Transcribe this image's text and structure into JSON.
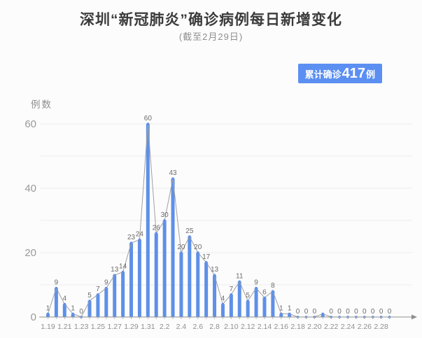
{
  "title": "深圳“新冠肺炎”确诊病例每日新增变化",
  "subtitle": "(截至2月29日)",
  "badge": {
    "prefix": "累计确诊",
    "number": "417",
    "suffix": "例"
  },
  "colors": {
    "bar": "#5e90e8",
    "marker": "#5e90e8",
    "line": "#a0a0a0",
    "badge_bg": "#5b8ff2",
    "grid": "#ededed",
    "axis": "#8f8f8f",
    "point_label": "#6b6b6b",
    "tick_text": "#8f8f8f",
    "y_tick_text": "#9a9a9a",
    "title_text": "#3b3b3b",
    "subtitle_text": "#8f8f8f"
  },
  "chart_data": {
    "type": "bar",
    "line_overlay": true,
    "title": "深圳“新冠肺炎”确诊病例每日新增变化",
    "subtitle": "(截至2月29日)",
    "ylabel": "例数",
    "xlabel": "",
    "grid": true,
    "grid_step": 10,
    "ylim": [
      0,
      65
    ],
    "y_ticks": [
      0,
      20,
      40,
      60
    ],
    "categories": [
      "1.19",
      "1.20",
      "1.21",
      "1.22",
      "1.23",
      "1.24",
      "1.25",
      "1.26",
      "1.27",
      "1.28",
      "1.29",
      "1.30",
      "1.31",
      "2.1",
      "2.2",
      "2.3",
      "2.4",
      "2.5",
      "2.6",
      "2.7",
      "2.8",
      "2.9",
      "2.10",
      "2.11",
      "2.12",
      "2.13",
      "2.14",
      "2.15",
      "2.16",
      "2.17",
      "2.18",
      "2.19",
      "2.20",
      "2.21",
      "2.22",
      "2.23",
      "2.24",
      "2.25",
      "2.26",
      "2.27",
      "2.28",
      "2.29"
    ],
    "values": [
      1,
      9,
      4,
      1,
      0,
      5,
      7,
      9,
      13,
      14,
      23,
      24,
      60,
      26,
      30,
      43,
      20,
      25,
      20,
      17,
      13,
      4,
      7,
      11,
      5,
      9,
      6,
      8,
      1,
      1,
      0,
      0,
      0,
      1,
      0,
      0,
      0,
      0,
      0,
      0,
      0,
      0
    ],
    "point_labels": [
      "1",
      "9",
      "4",
      "1",
      "0",
      "5",
      "7",
      "9",
      "13",
      "14",
      "23",
      "24",
      "60",
      "26",
      "30",
      "43",
      "20",
      "25",
      "20",
      "17",
      "13",
      "4",
      "7",
      "11",
      "5",
      "9",
      "6",
      "8",
      "1",
      "1",
      "0",
      "0",
      "0",
      "",
      "0",
      "0",
      "0",
      "0",
      "0",
      "0",
      "0",
      "0"
    ],
    "x_tick_labels": [
      "1.19",
      "1.21",
      "1.23",
      "1.25",
      "1.27",
      "1.29",
      "1.31",
      "2.2",
      "2.4",
      "2.6",
      "2.8",
      "2.10",
      "2.12",
      "2.14",
      "2.16",
      "2.18",
      "2.20",
      "2.22",
      "2.24",
      "2.26",
      "2.28"
    ],
    "cumulative_total": 417
  }
}
